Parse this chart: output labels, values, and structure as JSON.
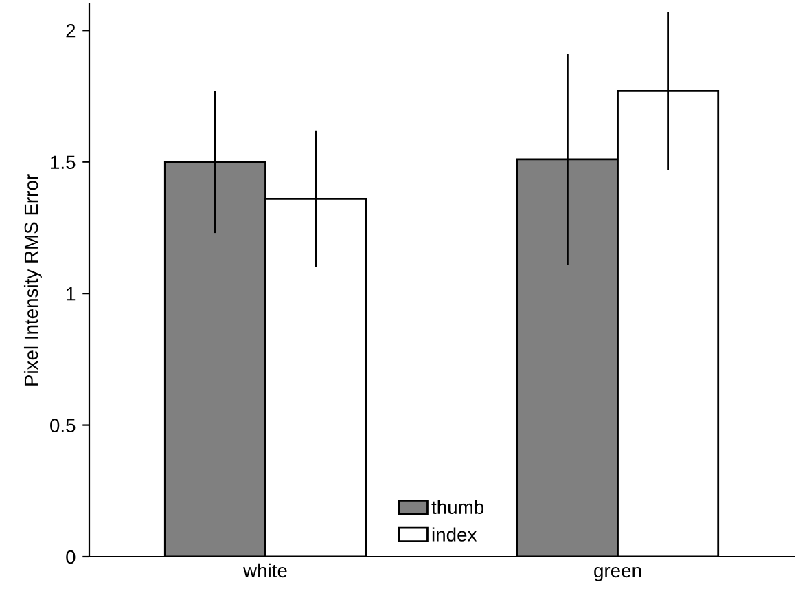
{
  "chart_data": {
    "type": "bar",
    "ylabel": "Pixel Intensity RMS Error",
    "categories": [
      "white",
      "green"
    ],
    "series": [
      {
        "name": "thumb",
        "color": "#808080",
        "values": [
          1.5,
          1.51
        ],
        "errors": [
          [
            1.23,
            1.77
          ],
          [
            1.11,
            1.91
          ]
        ]
      },
      {
        "name": "index",
        "color": "#ffffff",
        "values": [
          1.36,
          1.77
        ],
        "errors": [
          [
            1.1,
            1.62
          ],
          [
            1.47,
            2.07
          ]
        ]
      }
    ],
    "ylim": [
      0,
      2.1
    ],
    "yticks": [
      0,
      0.5,
      1,
      1.5,
      2
    ],
    "grid": false,
    "legend": "bottom"
  }
}
